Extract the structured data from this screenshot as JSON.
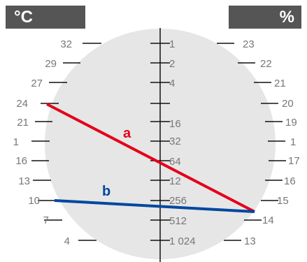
{
  "header": {
    "left_unit": "°C",
    "right_unit": "%"
  },
  "colors": {
    "line_a": "#e3001b",
    "line_b": "#0047a0",
    "disc": "#e6e6e6",
    "header_bg": "#555555",
    "label": "#777777"
  },
  "left_scale": [
    "32",
    "29",
    "27",
    "24",
    "21",
    "1",
    "16",
    "13",
    "10",
    "7",
    "4"
  ],
  "center_scale": [
    "1",
    "2",
    "4",
    "",
    "16",
    "32",
    "64",
    "12",
    "256",
    "512",
    "1 024"
  ],
  "right_scale": [
    "23",
    "22",
    "21",
    "20",
    "19",
    "1",
    "17",
    "16",
    "15",
    "14",
    "13"
  ],
  "lines": [
    {
      "label": "a",
      "from": "24",
      "to": "15"
    },
    {
      "label": "b",
      "from": "10",
      "to": "15"
    }
  ]
}
